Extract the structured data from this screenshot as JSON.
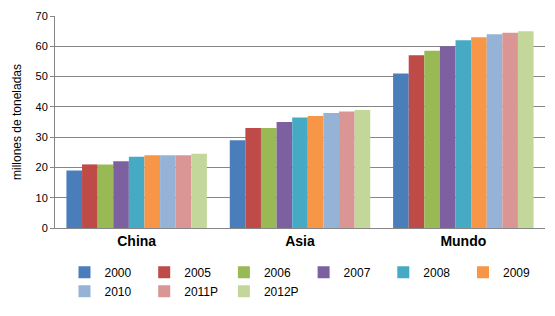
{
  "chart_data": {
    "type": "bar",
    "y_label": "millones de toneladas",
    "categories": [
      "China",
      "Asia",
      "Mundo"
    ],
    "series": [
      {
        "name": "2000",
        "color": "#4a7ebb",
        "values": [
          19,
          29,
          51
        ]
      },
      {
        "name": "2005",
        "color": "#be4b48",
        "values": [
          21,
          33,
          57
        ]
      },
      {
        "name": "2006",
        "color": "#98b954",
        "values": [
          21,
          33,
          58.5
        ]
      },
      {
        "name": "2007",
        "color": "#7d60a0",
        "values": [
          22,
          35,
          60
        ]
      },
      {
        "name": "2008",
        "color": "#46aac5",
        "values": [
          23.5,
          36.5,
          62
        ]
      },
      {
        "name": "2009",
        "color": "#f79647",
        "values": [
          24,
          37,
          63
        ]
      },
      {
        "name": "2010",
        "color": "#95b3d7",
        "values": [
          24,
          38,
          64
        ]
      },
      {
        "name": "2011P",
        "color": "#da9694",
        "values": [
          24,
          38.5,
          64.5
        ]
      },
      {
        "name": "2012P",
        "color": "#c4d79b",
        "values": [
          24.5,
          39,
          65
        ]
      }
    ],
    "ylim": [
      0,
      70
    ],
    "yticks": [
      0,
      10,
      20,
      30,
      40,
      50,
      60,
      70
    ],
    "grid": true,
    "legend": "bottom"
  }
}
